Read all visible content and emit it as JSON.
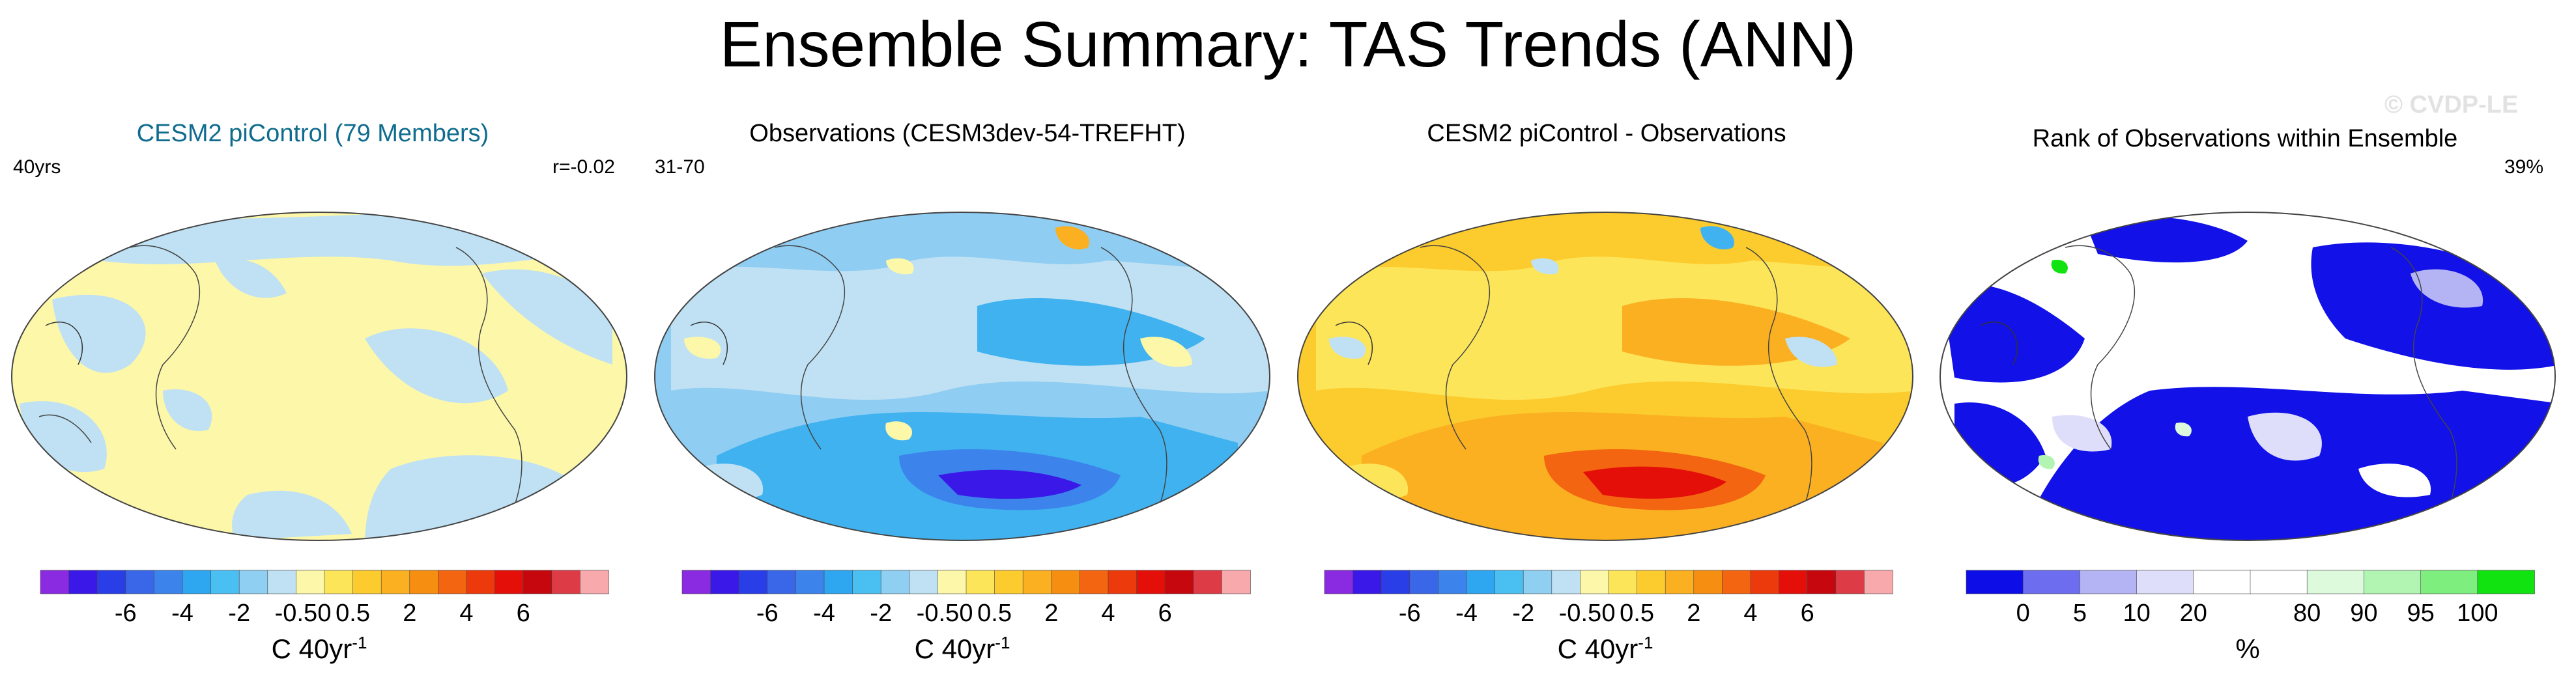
{
  "title": "Ensemble Summary: TAS Trends (ANN)",
  "watermark": "© CVDP-LE",
  "colors": {
    "ocean_neutral": "#fdf7a9",
    "light_blue": "#bfe1f3",
    "mid_blue": "#8fcdf2",
    "blue": "#40b2f0",
    "rank_blue": "#1111e8",
    "orange": "#fbb021"
  },
  "panels": [
    {
      "title": "CESM2 piControl (79 Members)",
      "title_color": "#0f6c8e",
      "left_label": "40yrs",
      "right_label": "r=-0.02",
      "units_main": "C 40yr",
      "units_sup": "-1",
      "colorbar": "trend"
    },
    {
      "title": "Observations (CESM3dev-54-TREFHT)",
      "title_color": "#000000",
      "left_label": "31-70",
      "right_label": "",
      "units_main": "C 40yr",
      "units_sup": "-1",
      "colorbar": "trend"
    },
    {
      "title": "CESM2 piControl - Observations",
      "title_color": "#000000",
      "left_label": "",
      "right_label": "",
      "units_main": "C 40yr",
      "units_sup": "-1",
      "colorbar": "trend"
    },
    {
      "title": "Rank of Observations within Ensemble",
      "title_color": "#000000",
      "left_label": "",
      "right_label": "39%",
      "units_main": "%",
      "units_sup": "",
      "colorbar": "rank"
    }
  ],
  "chart_data": [
    {
      "type": "heatmap",
      "title": "CESM2 piControl (79 Members)",
      "description_units": "C 40yr-1",
      "colorbar_colors": [
        "#8a2be2",
        "#3a19e8",
        "#2a3ee8",
        "#3a66e8",
        "#3c84ec",
        "#2ea6f0",
        "#49bff2",
        "#8ecff2",
        "#bfe1f3",
        "#fdf7a9",
        "#fde55a",
        "#fccb2d",
        "#fbb021",
        "#f68e11",
        "#f36510",
        "#ed3a0d",
        "#e50f0a",
        "#c7070e",
        "#dd3c46",
        "#f8a9ab"
      ],
      "colorbar_ticks": [
        "-6",
        "-4",
        "-2",
        "-0.5",
        "0",
        "0.5",
        "2",
        "4",
        "6"
      ]
    },
    {
      "type": "heatmap",
      "title": "Observations (CESM3dev-54-TREFHT)",
      "description_units": "C 40yr-1",
      "colorbar_colors": [
        "#8a2be2",
        "#3a19e8",
        "#2a3ee8",
        "#3a66e8",
        "#3c84ec",
        "#2ea6f0",
        "#49bff2",
        "#8ecff2",
        "#bfe1f3",
        "#fdf7a9",
        "#fde55a",
        "#fccb2d",
        "#fbb021",
        "#f68e11",
        "#f36510",
        "#ed3a0d",
        "#e50f0a",
        "#c7070e",
        "#dd3c46",
        "#f8a9ab"
      ],
      "colorbar_ticks": [
        "-6",
        "-4",
        "-2",
        "-0.5",
        "0",
        "0.5",
        "2",
        "4",
        "6"
      ]
    },
    {
      "type": "heatmap",
      "title": "CESM2 piControl - Observations",
      "description_units": "C 40yr-1",
      "colorbar_colors": [
        "#8a2be2",
        "#3a19e8",
        "#2a3ee8",
        "#3a66e8",
        "#3c84ec",
        "#2ea6f0",
        "#49bff2",
        "#8ecff2",
        "#bfe1f3",
        "#fdf7a9",
        "#fde55a",
        "#fccb2d",
        "#fbb021",
        "#f68e11",
        "#f36510",
        "#ed3a0d",
        "#e50f0a",
        "#c7070e",
        "#dd3c46",
        "#f8a9ab"
      ],
      "colorbar_ticks": [
        "-6",
        "-4",
        "-2",
        "-0.5",
        "0",
        "0.5",
        "2",
        "4",
        "6"
      ]
    },
    {
      "type": "heatmap",
      "title": "Rank of Observations within Ensemble",
      "description_units": "%",
      "colorbar_colors": [
        "#0d0de8",
        "#6d6df0",
        "#b4b4f5",
        "#dedefb",
        "#ffffff",
        "#ffffff",
        "#ddfadd",
        "#b2f4b2",
        "#7eee7e",
        "#11e311"
      ],
      "colorbar_ticks": [
        "0",
        "5",
        "10",
        "20",
        "80",
        "90",
        "95",
        "100"
      ]
    }
  ]
}
